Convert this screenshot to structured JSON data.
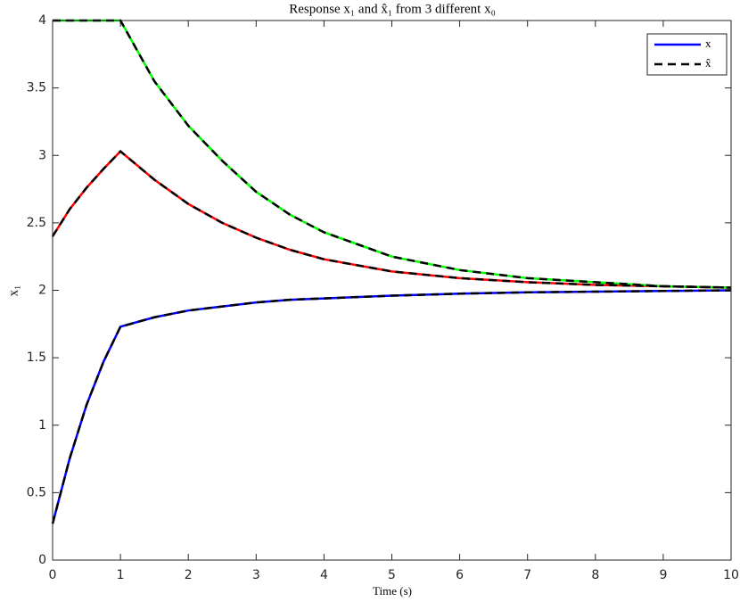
{
  "chart_data": {
    "type": "line",
    "title": "Response x₁ and x̂₁ from 3 different x₀",
    "x_label": "Time (s)",
    "y_label": "x₁",
    "x": [
      0,
      0.25,
      0.5,
      0.75,
      1,
      1.5,
      2,
      2.5,
      3,
      3.5,
      4,
      5,
      6,
      7,
      8,
      9,
      10
    ],
    "series": [
      {
        "name": "x",
        "color": "#0000ff",
        "dash": false,
        "values": [
          0.27,
          0.75,
          1.15,
          1.47,
          1.73,
          1.8,
          1.85,
          1.88,
          1.91,
          1.93,
          1.94,
          1.96,
          1.975,
          1.985,
          1.99,
          1.995,
          2.0
        ]
      },
      {
        "color": "#ff0000",
        "dash": false,
        "values": [
          2.4,
          2.6,
          2.76,
          2.9,
          3.03,
          2.82,
          2.64,
          2.5,
          2.39,
          2.3,
          2.23,
          2.14,
          2.09,
          2.06,
          2.04,
          2.03,
          2.02
        ]
      },
      {
        "color": "#00ff00",
        "dash": false,
        "values": [
          4,
          4,
          4,
          4,
          4,
          3.55,
          3.22,
          2.96,
          2.73,
          2.56,
          2.43,
          2.25,
          2.15,
          2.09,
          2.06,
          2.03,
          2.02
        ]
      },
      {
        "name": "x̂",
        "color": "#000000",
        "dash": true,
        "values": [
          0.27,
          0.75,
          1.15,
          1.47,
          1.73,
          1.8,
          1.85,
          1.88,
          1.91,
          1.93,
          1.94,
          1.96,
          1.975,
          1.985,
          1.99,
          1.995,
          2.0
        ]
      },
      {
        "color": "#000000",
        "dash": true,
        "values": [
          2.4,
          2.6,
          2.76,
          2.9,
          3.03,
          2.82,
          2.64,
          2.5,
          2.39,
          2.3,
          2.23,
          2.14,
          2.09,
          2.06,
          2.04,
          2.03,
          2.02
        ]
      },
      {
        "color": "#000000",
        "dash": true,
        "values": [
          4,
          4,
          4,
          4,
          4,
          3.55,
          3.22,
          2.96,
          2.73,
          2.56,
          2.43,
          2.25,
          2.15,
          2.09,
          2.06,
          2.03,
          2.02
        ]
      }
    ],
    "xlim": [
      0,
      10
    ],
    "xticks": [
      0,
      1,
      2,
      3,
      4,
      5,
      6,
      7,
      8,
      9,
      10
    ],
    "ylim": [
      0,
      4
    ],
    "yticks": [
      0,
      0.5,
      1,
      1.5,
      2,
      2.5,
      3,
      3.5,
      4
    ],
    "legend": "upper right"
  }
}
